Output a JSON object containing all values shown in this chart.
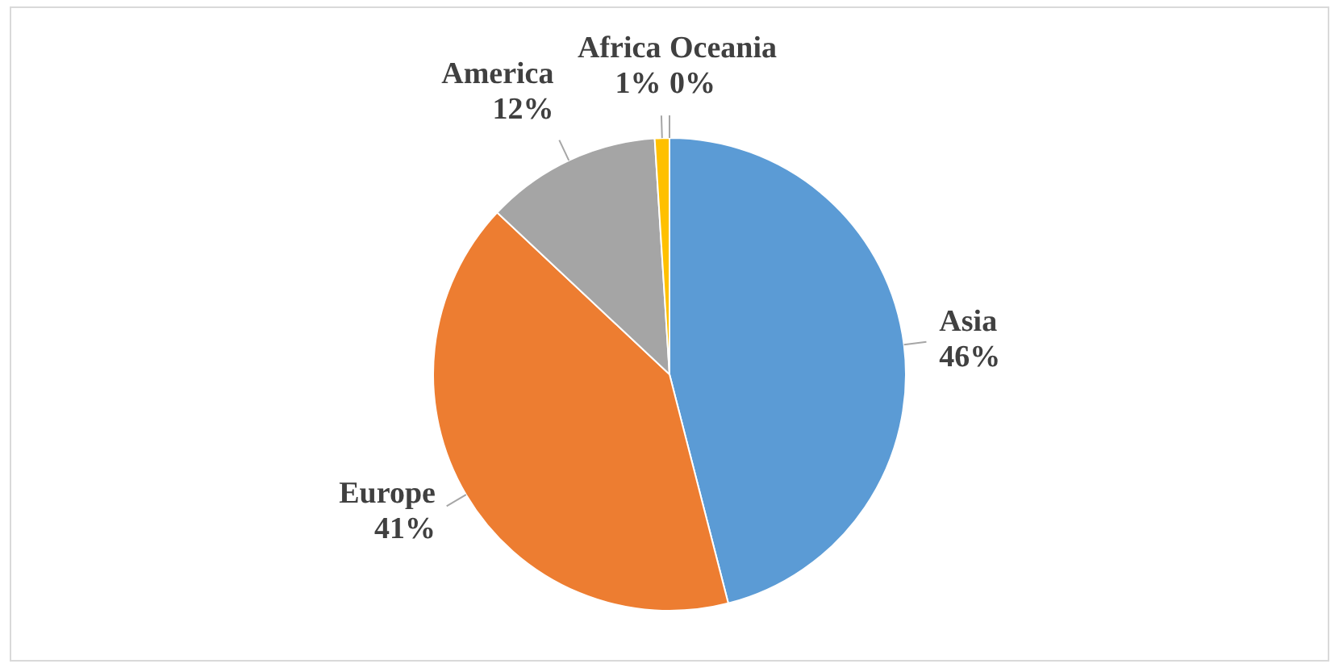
{
  "chart_data": {
    "type": "pie",
    "categories": [
      "Asia",
      "Europe",
      "America",
      "Africa",
      "Oceania"
    ],
    "values": [
      46,
      41,
      12,
      1,
      0
    ],
    "colors": [
      "#5b9bd5",
      "#ed7d31",
      "#a5a5a5",
      "#ffc000",
      "#4472c4"
    ],
    "value_labels": [
      "46%",
      "41%",
      "12%",
      "1%",
      "0%"
    ],
    "legend": false
  }
}
